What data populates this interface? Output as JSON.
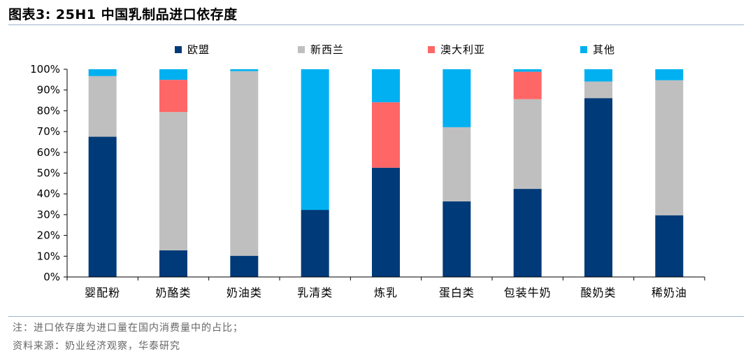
{
  "figure": {
    "title": "图表3:   25H1 中国乳制品进口依存度",
    "note": "注：进口依存度为进口量在国内消费量中的占比；",
    "source": "资料来源：奶业经济观察，华泰研究"
  },
  "colors": {
    "欧盟": "#003a78",
    "新西兰": "#bfbfbf",
    "澳大利亚": "#ff6666",
    "其他": "#00b0f0",
    "rule": "#9fb3c8"
  },
  "chart_data": {
    "type": "bar",
    "stacked": true,
    "categories": [
      "婴配粉",
      "奶酪类",
      "奶油类",
      "乳清类",
      "炼乳",
      "蛋白类",
      "包装牛奶",
      "酸奶类",
      "稀奶油"
    ],
    "series": [
      {
        "name": "欧盟",
        "values": [
          67.5,
          12.8,
          10.2,
          32.3,
          52.6,
          36.4,
          42.4,
          86.1,
          29.7
        ]
      },
      {
        "name": "新西兰",
        "values": [
          29.2,
          66.6,
          88.9,
          0,
          0,
          35.7,
          43.2,
          8.0,
          65.0
        ]
      },
      {
        "name": "澳大利亚",
        "values": [
          0,
          15.5,
          0,
          0,
          31.5,
          0,
          13.2,
          0,
          0
        ]
      },
      {
        "name": "其他",
        "values": [
          3.3,
          5.1,
          0.9,
          67.7,
          15.9,
          27.9,
          1.2,
          5.9,
          5.3
        ]
      }
    ],
    "ylim": [
      0,
      100
    ],
    "yticks": [
      "0%",
      "10%",
      "20%",
      "30%",
      "40%",
      "50%",
      "60%",
      "70%",
      "80%",
      "90%",
      "100%"
    ],
    "legend_position": "top",
    "grid": false,
    "xlabel": "",
    "ylabel": ""
  }
}
